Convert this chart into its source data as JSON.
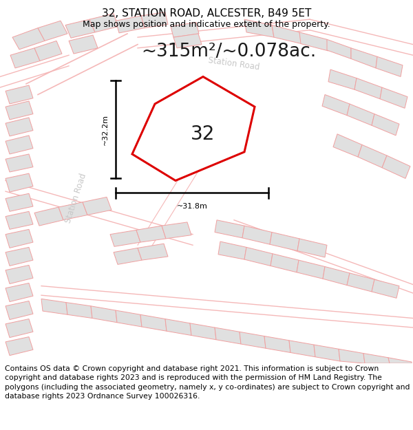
{
  "title": "32, STATION ROAD, ALCESTER, B49 5ET",
  "subtitle": "Map shows position and indicative extent of the property.",
  "area_text": "~315m²/~0.078ac.",
  "number_label": "32",
  "dim_width": "~31.8m",
  "dim_height": "~32.2m",
  "copyright_text": "Contains OS data © Crown copyright and database right 2021. This information is subject to Crown copyright and database rights 2023 and is reproduced with the permission of HM Land Registry. The polygons (including the associated geometry, namely x, y co-ordinates) are subject to Crown copyright and database rights 2023 Ordnance Survey 100026316.",
  "bg_color": "#ffffff",
  "map_bg": "#ffffff",
  "polygon_fill": "#ffffff",
  "polygon_edge": "#dd0000",
  "building_fill": "#e0e0e0",
  "building_edge": "#f0a0a0",
  "road_color": "#f5b8b8",
  "dim_color": "#000000",
  "road_label_color": "#c8c8c8",
  "title_color": "#000000",
  "title_fontsize": 11,
  "subtitle_fontsize": 9,
  "area_fontsize": 19,
  "number_fontsize": 20,
  "dim_fontsize": 8,
  "copyright_fontsize": 7.8
}
